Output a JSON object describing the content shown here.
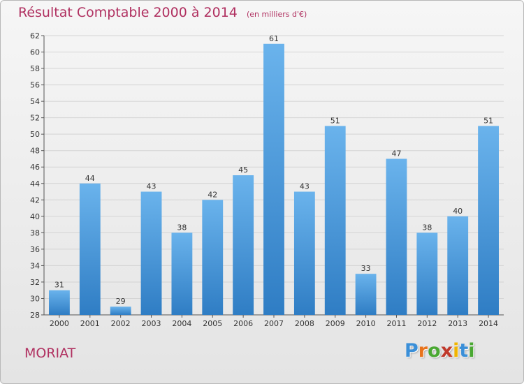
{
  "header": {
    "title": "Résultat Comptable 2000 à 2014",
    "unit_note": "(en milliers d'€)"
  },
  "footer": {
    "place_name": "MORIAT",
    "logo_letters": [
      "P",
      "r",
      "o",
      "x",
      "i",
      "t",
      "i"
    ],
    "logo_colors": [
      "#3a8fd8",
      "#e8731c",
      "#4aa832",
      "#c0392b",
      "#f0b400",
      "#3a8fd8",
      "#4aa832"
    ]
  },
  "colors": {
    "bar_light": "#6ab3ec",
    "bar_dark": "#2f7dc4",
    "grid": "#d4d4d4",
    "title": "#b03060"
  },
  "chart_data": {
    "type": "bar",
    "title": "Résultat Comptable 2000 à 2014",
    "subtitle": "(en milliers d'€)",
    "xlabel": "",
    "ylabel": "",
    "categories": [
      "2000",
      "2001",
      "2002",
      "2003",
      "2004",
      "2005",
      "2006",
      "2007",
      "2008",
      "2009",
      "2010",
      "2011",
      "2012",
      "2013",
      "2014"
    ],
    "values": [
      31,
      44,
      29,
      43,
      38,
      42,
      45,
      61,
      43,
      51,
      33,
      47,
      38,
      40,
      51
    ],
    "ylim": [
      28,
      62
    ],
    "yticks": [
      28,
      30,
      32,
      34,
      36,
      38,
      40,
      42,
      44,
      46,
      48,
      50,
      52,
      54,
      56,
      58,
      60,
      62
    ],
    "grid": true,
    "legend": "none"
  }
}
